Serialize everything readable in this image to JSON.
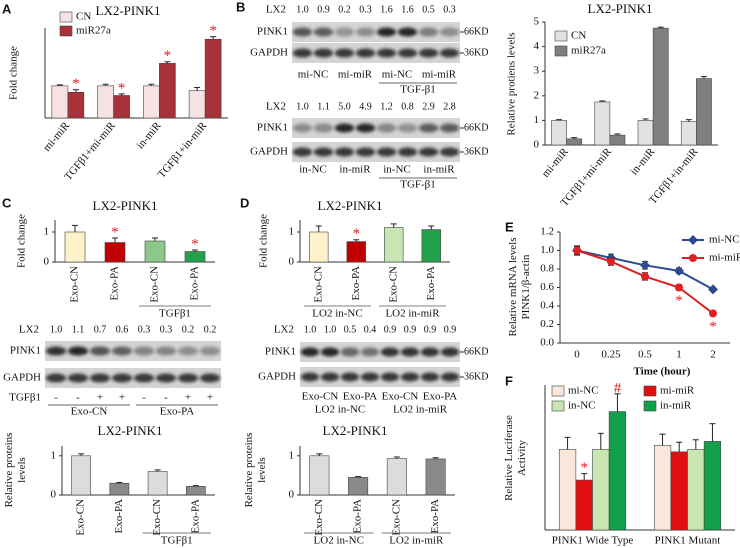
{
  "panel_labels": [
    "A",
    "B",
    "C",
    "D",
    "E",
    "F"
  ],
  "chart_data": [
    {
      "type": "bar",
      "title": "LX2-PINK1",
      "y_label": [
        "Fold change"
      ],
      "categories": [
        "mi-miR",
        "TGFβ1+mi-miR",
        "in-miR",
        "TGFβ1+in-miR"
      ],
      "series": [
        {
          "name": "CN",
          "color": "#f6e2e2",
          "values": [
            1,
            1,
            1,
            0.85
          ],
          "errors": [
            0.03,
            0.05,
            0.05,
            0.1
          ]
        },
        {
          "name": "miR27a",
          "color": "#a8323a",
          "values": [
            0.8,
            0.7,
            1.7,
            2.45
          ],
          "errors": [
            0.08,
            0.05,
            0.05,
            0.08
          ]
        }
      ],
      "ylim": [
        0,
        2.8
      ],
      "annotation_color": "#e02020",
      "annotations": [
        {
          "text": "*",
          "series": 1,
          "index": 0
        },
        {
          "text": "*",
          "series": 1,
          "index": 1
        },
        {
          "text": "*",
          "series": 1,
          "index": 2
        },
        {
          "text": "*",
          "series": 1,
          "index": 3
        }
      ]
    },
    {
      "type": "bar",
      "title": "LX2-PINK1",
      "y_label": [
        "Relative protiens levels"
      ],
      "categories": [
        "mi-miR",
        "TGFβ1+mi-miR",
        "in-miR",
        "TGFβ1+in-miR"
      ],
      "series": [
        {
          "name": "CN",
          "color": "#e2e2e2",
          "values": [
            1,
            1.75,
            1,
            0.95
          ],
          "errors": [
            0.03,
            0.04,
            0.06,
            0.08
          ]
        },
        {
          "name": "miR27a",
          "color": "#7f7f7f",
          "values": [
            0.25,
            0.4,
            4.75,
            2.7
          ],
          "errors": [
            0.05,
            0.05,
            0.04,
            0.08
          ]
        }
      ],
      "ylim": [
        0,
        5
      ],
      "yticks": [
        0,
        1,
        2,
        3,
        4,
        5
      ]
    },
    {
      "type": "bar",
      "title": "LX2-PINK1",
      "y_label": [
        "Fold change"
      ],
      "categories": [
        "Exo-CN",
        "Exo-PA",
        "Exo-CN",
        "Exo-PA"
      ],
      "values": [
        1,
        0.65,
        0.7,
        0.35
      ],
      "errors": [
        0.22,
        0.15,
        0.1,
        0.05
      ],
      "colors": [
        "#fff2c8",
        "#c00000",
        "#8cc78c",
        "#22a04a"
      ],
      "ylim": [
        0,
        1.4
      ],
      "yticks": [
        0,
        1
      ],
      "groups": [
        {
          "label": "TGFβ1",
          "from": 2,
          "to": 3
        }
      ],
      "annotation_color": "#e02020",
      "annotations": [
        {
          "text": "*",
          "index": 1
        },
        {
          "text": "*",
          "index": 3
        }
      ]
    },
    {
      "type": "bar",
      "title": "LX2-PINK1",
      "y_label": [
        "Relative proteins",
        "levels"
      ],
      "categories": [
        "Exo-CN",
        "Exo-PA",
        "Exo-CN",
        "Exo-PA"
      ],
      "values": [
        1,
        0.3,
        0.6,
        0.22
      ],
      "errors": [
        0.05,
        0.02,
        0.04,
        0.02
      ],
      "colors": [
        "#dcdcdc",
        "#8a8a8a",
        "#dcdcdc",
        "#8a8a8a"
      ],
      "ylim": [
        0,
        1.25
      ],
      "yticks": [
        0,
        1
      ],
      "groups": [
        {
          "label": "TGFβ1",
          "from": 2,
          "to": 3
        }
      ]
    },
    {
      "type": "bar",
      "title": "LX2-PINK1",
      "y_label": [
        "Fold change"
      ],
      "categories": [
        "Exo-CN",
        "Exo-PA",
        "Exo-CN",
        "Exo-PA"
      ],
      "values": [
        1,
        0.68,
        1.15,
        1.08
      ],
      "errors": [
        0.2,
        0.06,
        0.12,
        0.12
      ],
      "colors": [
        "#fff2c8",
        "#c00000",
        "#c6e6b4",
        "#22a04a"
      ],
      "ylim": [
        0,
        1.4
      ],
      "yticks": [
        0,
        1
      ],
      "groups": [
        {
          "label": "LO2 in-NC",
          "from": 0,
          "to": 1
        },
        {
          "label": "LO2 in-miR",
          "from": 2,
          "to": 3
        }
      ],
      "annotation_color": "#e02020",
      "annotations": [
        {
          "text": "*",
          "index": 1
        }
      ]
    },
    {
      "type": "bar",
      "title": "LX2-PINK1",
      "y_label": [
        "Relative proteins",
        "levels"
      ],
      "categories": [
        "Exo-CN",
        "Exo-PA",
        "Exo-CN",
        "Exo-PA"
      ],
      "values": [
        1,
        0.45,
        0.93,
        0.92
      ],
      "errors": [
        0.05,
        0.02,
        0.04,
        0.03
      ],
      "colors": [
        "#dcdcdc",
        "#8a8a8a",
        "#dcdcdc",
        "#8a8a8a"
      ],
      "ylim": [
        0,
        1.25
      ],
      "yticks": [
        0,
        1
      ],
      "groups": [
        {
          "label": "LO2 in-NC",
          "from": 0,
          "to": 1
        },
        {
          "label": "LO2 in-miR",
          "from": 2,
          "to": 3
        }
      ]
    },
    {
      "type": "line",
      "y_label": [
        "Relative mRNA levels",
        "PINK1/β-actin"
      ],
      "x_label": "Time (hour)",
      "categories": [
        "0",
        "0.25",
        "0.5",
        "1",
        "2"
      ],
      "series": [
        {
          "name": "mi-NC",
          "color": "#2f4b8f",
          "marker": "diamond",
          "values": [
            1,
            0.92,
            0.84,
            0.78,
            0.58
          ],
          "errors": [
            0.04,
            0.04,
            0.04,
            0.03,
            0.02
          ]
        },
        {
          "name": "mi-miR",
          "color": "#e02020",
          "marker": "circle",
          "values": [
            1,
            0.88,
            0.72,
            0.6,
            0.32
          ],
          "errors": [
            0.05,
            0.04,
            0.04,
            0.03,
            0.02
          ]
        }
      ],
      "ylim": [
        0,
        1.2
      ],
      "yticks": [
        {
          "value": 0,
          "label": "0.0"
        },
        {
          "value": 0.2,
          "label": "0.2"
        },
        {
          "value": 0.4,
          "label": "0.4"
        },
        {
          "value": 0.6,
          "label": "0.6"
        },
        {
          "value": 0.8,
          "label": "0.8"
        },
        {
          "value": 1,
          "label": "1.0"
        },
        {
          "value": 1.2,
          "label": "1.2"
        }
      ],
      "annotation_color": "#e02020",
      "annotations": [
        {
          "text": "*",
          "series": 1,
          "index": 3
        },
        {
          "text": "*",
          "series": 1,
          "index": 4
        }
      ]
    },
    {
      "type": "bar",
      "y_label": [
        "Relative Luciferase",
        "Activity"
      ],
      "categories": [
        "PINK1 Wide Type",
        "PINK1 Mutant"
      ],
      "series": [
        {
          "name": "mi-NC",
          "color": "#fbe6dc",
          "values": [
            1,
            1.05
          ],
          "errors": [
            0.15,
            0.14
          ]
        },
        {
          "name": "mi-miR",
          "color": "#e01010",
          "values": [
            0.62,
            0.97
          ],
          "errors": [
            0.08,
            0.12
          ]
        },
        {
          "name": "in-NC",
          "color": "#c9e6b2",
          "values": [
            1,
            1
          ],
          "errors": [
            0.2,
            0.12
          ]
        },
        {
          "name": "in-miR",
          "color": "#12a04a",
          "values": [
            1.47,
            1.1
          ],
          "errors": [
            0.22,
            0.22
          ]
        }
      ],
      "ylim": [
        0,
        1.8
      ],
      "annotation_color": "#e02020",
      "annotations": [
        {
          "text": "*",
          "series": 1,
          "index": 0
        },
        {
          "text": "#",
          "series": 3,
          "index": 0
        }
      ]
    }
  ],
  "blots": [
    {
      "ratio_label": "LX2",
      "ratios": [
        "1.0",
        "0.9",
        "0.2",
        "0.3",
        "1.6",
        "1.6",
        "0.5",
        "0.3"
      ],
      "rows": [
        {
          "name": "PINK1",
          "size": "66KD"
        },
        {
          "name": "GAPDH",
          "size": "36KD"
        }
      ],
      "lanes": [
        "mi-NC",
        "mi-miR",
        "mi-NC",
        "mi-miR"
      ],
      "groups": [
        {
          "label": "TGF-β1",
          "from": 4,
          "to": 7
        }
      ]
    },
    {
      "ratio_label": "LX2",
      "ratios": [
        "1.0",
        "1.1",
        "5.0",
        "4.9",
        "1.2",
        "0.8",
        "2.9",
        "2.8"
      ],
      "rows": [
        {
          "name": "PINK1",
          "size": "66KD"
        },
        {
          "name": "GAPDH",
          "size": "36KD"
        }
      ],
      "lanes": [
        "in-NC",
        "in-miR",
        "in-NC",
        "in-miR"
      ],
      "groups": [
        {
          "label": "TGF-β1",
          "from": 4,
          "to": 7
        }
      ]
    },
    {
      "ratio_label": "LX2",
      "ratios": [
        "1.0",
        "1.1",
        "0.7",
        "0.6",
        "0.3",
        "0.3",
        "0.2",
        "0.2"
      ],
      "rows": [
        {
          "name": "PINK1"
        },
        {
          "name": "GAPDH"
        }
      ],
      "treatment": {
        "name": "TGFβ1",
        "signs": [
          "-",
          "-",
          "+",
          "+",
          "-",
          "-",
          "+",
          "+"
        ]
      },
      "groups": [
        {
          "label": "Exo-CN",
          "from": 0,
          "to": 3
        },
        {
          "label": "Exo-PA",
          "from": 4,
          "to": 7
        }
      ]
    },
    {
      "ratio_label": "LX2",
      "ratios": [
        "1.0",
        "1.0",
        "0.5",
        "0.4",
        "0.9",
        "0.9",
        "0.9",
        "0.9"
      ],
      "rows": [
        {
          "name": "PINK1",
          "size": "66KD"
        },
        {
          "name": "GAPDH",
          "size": "36KD"
        }
      ],
      "lanes": [
        "Exo-CN",
        "Exo-PA",
        "Exo-CN",
        "Exo-PA"
      ],
      "groups": [
        {
          "label": "LO2 in-NC",
          "from": 0,
          "to": 3
        },
        {
          "label": "LO2 in-miR",
          "from": 4,
          "to": 7
        }
      ]
    }
  ]
}
